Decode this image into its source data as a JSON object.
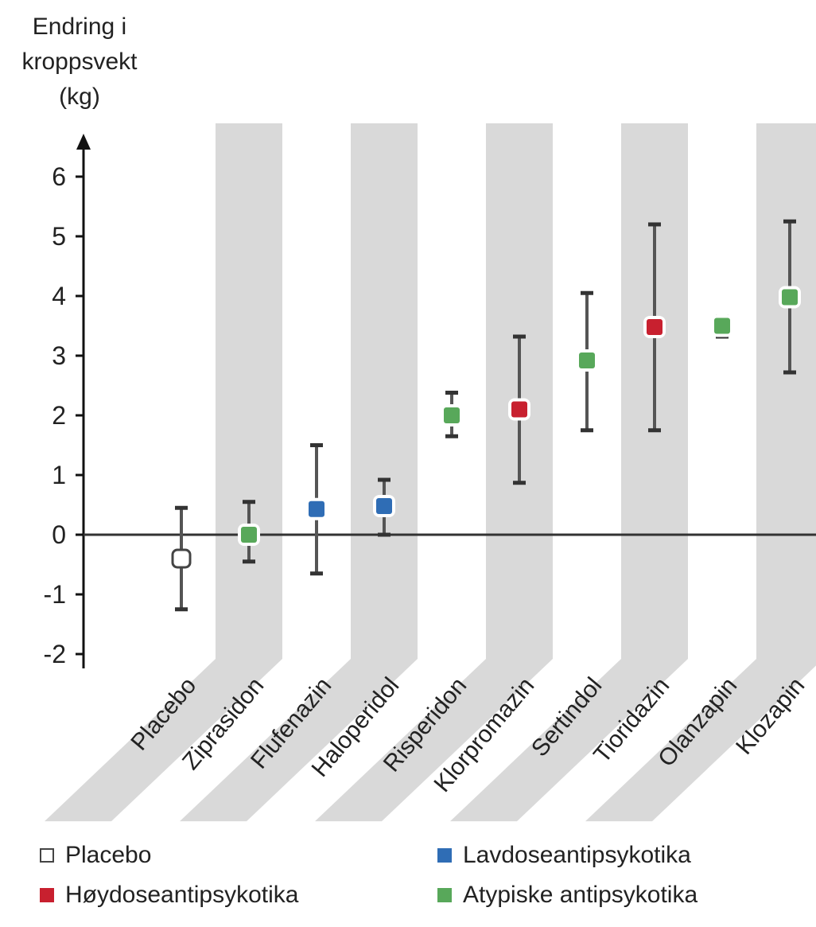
{
  "chart_data": {
    "type": "scatter",
    "ylabel_lines": [
      "Endring i",
      "kroppsvekt",
      "(kg)"
    ],
    "ylim": [
      -2,
      6
    ],
    "yticks": [
      "6",
      "5",
      "4",
      "3",
      "2",
      "1",
      "0",
      "-1",
      "-2"
    ],
    "ytick_values": [
      6,
      5,
      4,
      3,
      2,
      1,
      0,
      -1,
      -2
    ],
    "categories": [
      "Placebo",
      "Ziprasidon",
      "Flufenazin",
      "Haloperidol",
      "Risperidon",
      "Klorpromazin",
      "Sertindol",
      "Tioridazin",
      "Olanzapin",
      "Klozapin"
    ],
    "points": [
      {
        "drug": "Placebo",
        "group": "Placebo",
        "y": -0.4,
        "low": -1.25,
        "high": 0.45
      },
      {
        "drug": "Ziprasidon",
        "group": "Atypiske antipsykotika",
        "y": 0.0,
        "low": -0.45,
        "high": 0.55
      },
      {
        "drug": "Flufenazin",
        "group": "Lavdoseantipsykotika",
        "y": 0.43,
        "low": -0.65,
        "high": 1.5
      },
      {
        "drug": "Haloperidol",
        "group": "Lavdoseantipsykotika",
        "y": 0.48,
        "low": 0.0,
        "high": 0.92
      },
      {
        "drug": "Risperidon",
        "group": "Atypiske antipsykotika",
        "y": 2.0,
        "low": 1.65,
        "high": 2.38
      },
      {
        "drug": "Klorpromazin",
        "group": "Høydoseantipsykotika",
        "y": 2.1,
        "low": 0.87,
        "high": 3.32
      },
      {
        "drug": "Sertindol",
        "group": "Atypiske antipsykotika",
        "y": 2.92,
        "low": 1.75,
        "high": 4.05
      },
      {
        "drug": "Tioridazin",
        "group": "Høydoseantipsykotika",
        "y": 3.48,
        "low": 1.75,
        "high": 5.2
      },
      {
        "drug": "Olanzapin",
        "group": "Atypiske antipsykotika",
        "y": 3.5,
        "low": 3.32,
        "high": 3.65
      },
      {
        "drug": "Klozapin",
        "group": "Atypiske antipsykotika",
        "y": 3.98,
        "low": 2.72,
        "high": 5.25
      }
    ],
    "legend": [
      {
        "label": "Placebo",
        "color": "#ffffff",
        "marker": "open-square"
      },
      {
        "label": "Lavdoseantipsykotika",
        "color": "#2f6db5",
        "marker": "square"
      },
      {
        "label": "Høydoseantipsykotika",
        "color": "#c8202f",
        "marker": "square"
      },
      {
        "label": "Atypiske antipsykotika",
        "color": "#58a85a",
        "marker": "square"
      }
    ],
    "group_colors": {
      "Placebo": "#ffffff",
      "Lavdoseantipsykotika": "#2f6db5",
      "Høydoseantipsykotika": "#c8202f",
      "Atypiske antipsykotika": "#58a85a"
    },
    "band_color": "#d9d9d9",
    "grid": false,
    "legend_position": "bottom"
  }
}
